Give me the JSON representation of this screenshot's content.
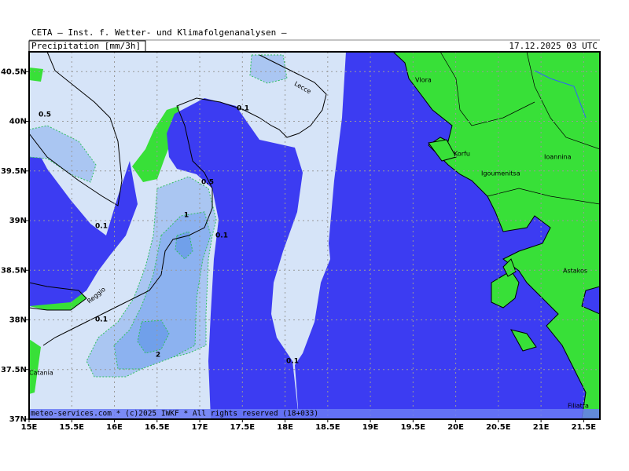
{
  "header": {
    "title": "CETA – Inst. f. Wetter- und Klimafolgenanalysen –",
    "product": "Precipitation [mm/3h]",
    "valid_time": "17.12.2025 03 UTC"
  },
  "map": {
    "lonlim": [
      15,
      21.69
    ],
    "latlim": [
      37,
      40.7
    ],
    "lon_ticks": [
      {
        "value": 15,
        "label": "15E"
      },
      {
        "value": 15.5,
        "label": "15.5E"
      },
      {
        "value": 16,
        "label": "16E"
      },
      {
        "value": 16.5,
        "label": "16.5E"
      },
      {
        "value": 17,
        "label": "17E"
      },
      {
        "value": 17.5,
        "label": "17.5E"
      },
      {
        "value": 18,
        "label": "18E"
      },
      {
        "value": 18.5,
        "label": "18.5E"
      },
      {
        "value": 19,
        "label": "19E"
      },
      {
        "value": 19.5,
        "label": "19.5E"
      },
      {
        "value": 20,
        "label": "20E"
      },
      {
        "value": 20.5,
        "label": "20.5E"
      },
      {
        "value": 21,
        "label": "21E"
      },
      {
        "value": 21.5,
        "label": "21.5E"
      }
    ],
    "lat_ticks": [
      {
        "value": 37,
        "label": "37N"
      },
      {
        "value": 37.5,
        "label": "37.5N"
      },
      {
        "value": 38,
        "label": "38N"
      },
      {
        "value": 38.5,
        "label": "38.5N"
      },
      {
        "value": 39,
        "label": "39N"
      },
      {
        "value": 39.5,
        "label": "39.5N"
      },
      {
        "value": 40,
        "label": "40N"
      },
      {
        "value": 40.5,
        "label": "40.5N"
      }
    ],
    "places": [
      "Vlora",
      "Lecce",
      "Korfu",
      "Igoumenitsa",
      "Ioannina",
      "Astakos",
      "Reggio",
      "Catania",
      "Filiatra"
    ],
    "contour_labels": [
      0.5,
      0.1,
      0.5,
      1,
      0.1,
      0.1,
      0.1,
      2,
      0.1
    ],
    "footer": "meteo-services.com * (c)2025 IWKF * All rights reserved (18+033)"
  }
}
